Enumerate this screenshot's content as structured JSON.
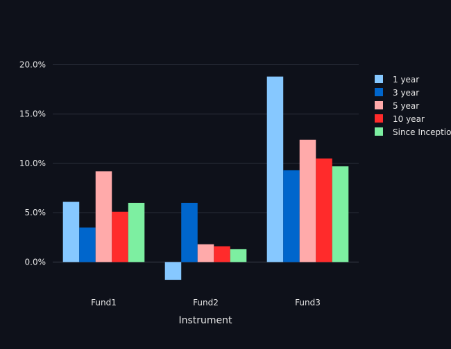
{
  "chart_data": {
    "type": "bar",
    "title": "",
    "xlabel": "Instrument",
    "ylabel": "",
    "categories": [
      "Fund1",
      "Fund2",
      "Fund3"
    ],
    "series": [
      {
        "name": "1 year",
        "color": "#86c8ff",
        "values": [
          6.1,
          -1.8,
          18.8
        ]
      },
      {
        "name": "3 year",
        "color": "#0066cc",
        "values": [
          3.5,
          6.0,
          9.3
        ]
      },
      {
        "name": "5 year",
        "color": "#ffaaaa",
        "values": [
          9.2,
          1.8,
          12.4
        ]
      },
      {
        "name": "10 year",
        "color": "#ff2b2b",
        "values": [
          5.1,
          1.6,
          10.5
        ]
      },
      {
        "name": "Since Inception",
        "color": "#7defa1",
        "values": [
          6.0,
          1.3,
          9.7
        ]
      }
    ],
    "y_tick_labels": [
      "0.0%",
      "5.0%",
      "10.0%",
      "15.0%",
      "20.0%"
    ],
    "y_ticks": [
      0,
      5,
      10,
      15,
      20
    ],
    "ylim": [
      -3.2,
      22
    ],
    "y_unit": "percent",
    "grid": true,
    "legend_position": "right",
    "colors": {
      "background": "#0e111a",
      "grid": "#2a2f3a",
      "text": "#e6e6e6",
      "zeroline": "#3a3f4a"
    }
  }
}
